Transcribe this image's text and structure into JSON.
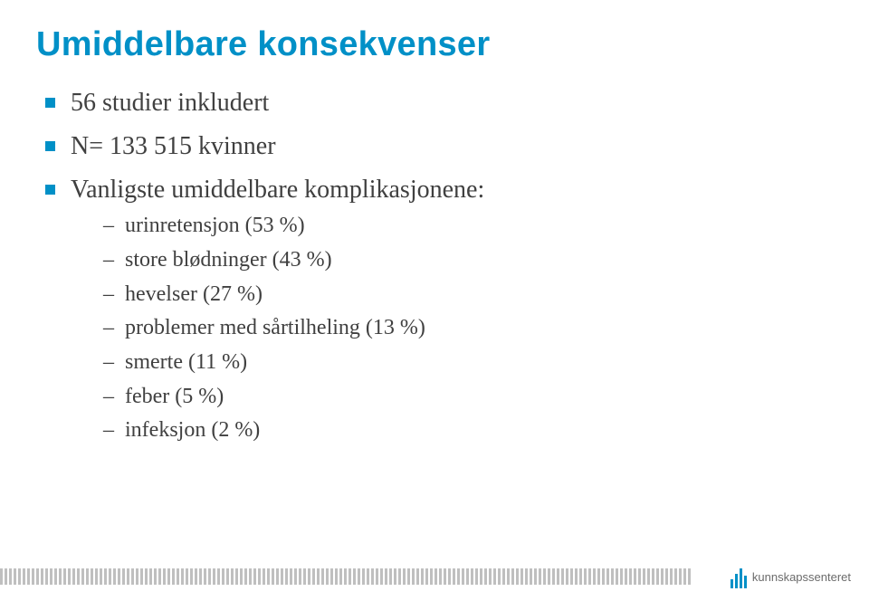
{
  "colors": {
    "title": "#0090c7",
    "bullet_square": "#0090c7",
    "body_text": "#404040",
    "stripe": "#bfbfbf",
    "logo_bar": "#0090c7",
    "logo_text": "#6b6b6b"
  },
  "title": "Umiddelbare konsekvenser",
  "bullets": [
    {
      "text": "56 studier inkludert"
    },
    {
      "text": "N= 133 515 kvinner"
    },
    {
      "text": "Vanligste umiddelbare komplikasjonene:",
      "sub": [
        "urinretensjon (53 %)",
        "store blødninger (43 %)",
        "hevelser (27 %)",
        "problemer med sårtilheling (13 %)",
        "smerte (11 %)",
        "feber (5 %)",
        "infeksjon (2 %)"
      ]
    }
  ],
  "logo_text": "kunnskapssenteret",
  "stripes_count": 153
}
